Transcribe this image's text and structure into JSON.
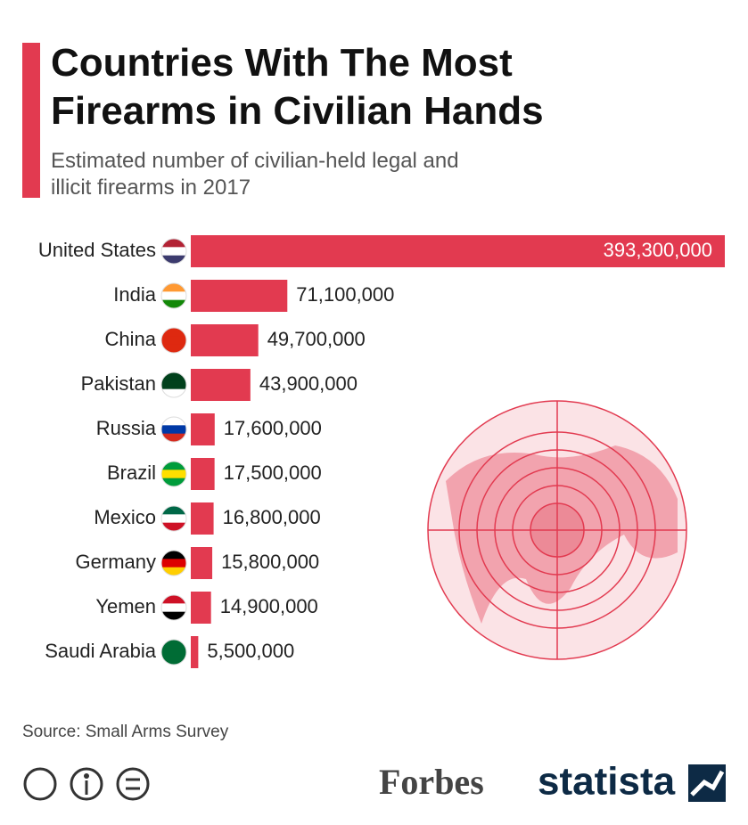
{
  "chart_data": {
    "type": "bar",
    "orientation": "horizontal",
    "title": "Countries With The Most Firearms in Civilian Hands",
    "subtitle": "Estimated number of civilian-held legal and illicit firearms in 2017",
    "categories": [
      "United States",
      "India",
      "China",
      "Pakistan",
      "Russia",
      "Brazil",
      "Mexico",
      "Germany",
      "Yemen",
      "Saudi Arabia"
    ],
    "values": [
      393300000,
      71100000,
      49700000,
      43900000,
      17600000,
      17500000,
      16800000,
      15800000,
      14900000,
      5500000
    ],
    "value_labels": [
      "393,300,000",
      "71,100,000",
      "49,700,000",
      "43,900,000",
      "17,600,000",
      "17,500,000",
      "16,800,000",
      "15,800,000",
      "14,900,000",
      "5,500,000"
    ],
    "color": "#e23a50",
    "source": "Source: Small Arms Survey",
    "logos": [
      "Forbes",
      "statista"
    ]
  }
}
